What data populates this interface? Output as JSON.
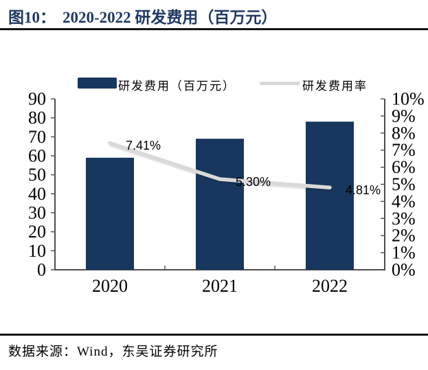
{
  "header": {
    "title_prefix": "图10：",
    "title": "2020-2022 研发费用（百万元）"
  },
  "legend": {
    "bar_label": "研发费用（百万元）",
    "line_label": "研发费用率"
  },
  "footer": {
    "source": "数据来源：Wind，东吴证券研究所"
  },
  "colors": {
    "navy": "#17375E",
    "line_gray": "#D9D9D9",
    "title_navy": "#1F3864",
    "axis_gray": "#4d4d4d",
    "text_black": "#000000"
  },
  "chart_data": {
    "type": "bar",
    "subtype": "bar+line combo, dual axis",
    "title": "2020-2022 研发费用（百万元）",
    "categories": [
      "2020",
      "2021",
      "2022"
    ],
    "series": [
      {
        "name": "研发费用（百万元）",
        "type": "bar",
        "axis": "left",
        "values": [
          59,
          69,
          78
        ]
      },
      {
        "name": "研发费用率",
        "type": "line",
        "axis": "right",
        "values": [
          7.41,
          5.3,
          4.81
        ],
        "point_labels": [
          "7.41%",
          "5.30%",
          "4.81%"
        ]
      }
    ],
    "left_axis": {
      "min": 0,
      "max": 90,
      "step": 10,
      "tick_labels": [
        "0",
        "10",
        "20",
        "30",
        "40",
        "50",
        "60",
        "70",
        "80",
        "90"
      ]
    },
    "right_axis": {
      "min": 0,
      "max": 10,
      "step": 1,
      "tick_labels": [
        "0%",
        "1%",
        "2%",
        "3%",
        "4%",
        "5%",
        "6%",
        "7%",
        "8%",
        "9%",
        "10%"
      ]
    },
    "grid": false,
    "legend_position": "top"
  }
}
